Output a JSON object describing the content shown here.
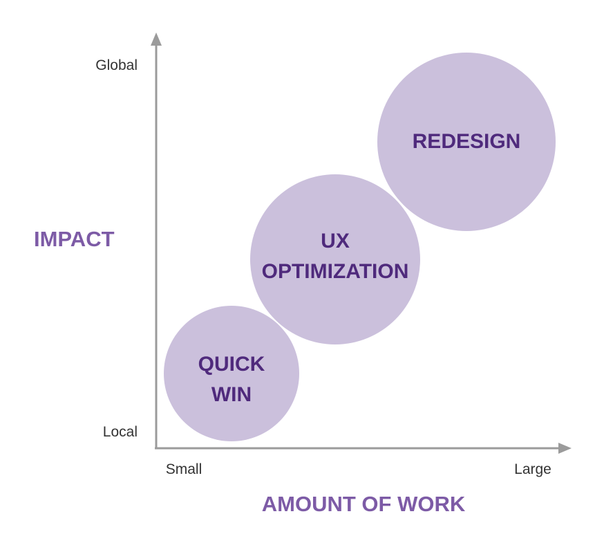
{
  "axes": {
    "y_title": "IMPACT",
    "x_title": "AMOUNT OF WORK",
    "y_top_label": "Global",
    "y_bottom_label": "Local",
    "x_left_label": "Small",
    "x_right_label": "Large"
  },
  "bubbles": [
    {
      "line1": "QUICK",
      "line2": "WIN"
    },
    {
      "line1": "UX",
      "line2": "OPTIMIZATION"
    },
    {
      "line1": "REDESIGN",
      "line2": ""
    }
  ],
  "colors": {
    "axis": "#9b9b9b",
    "bubble_fill": "#cbc0dc",
    "bubble_text": "#4f2a7c",
    "axis_title": "#7d5ba6",
    "tick_text": "#333333"
  }
}
